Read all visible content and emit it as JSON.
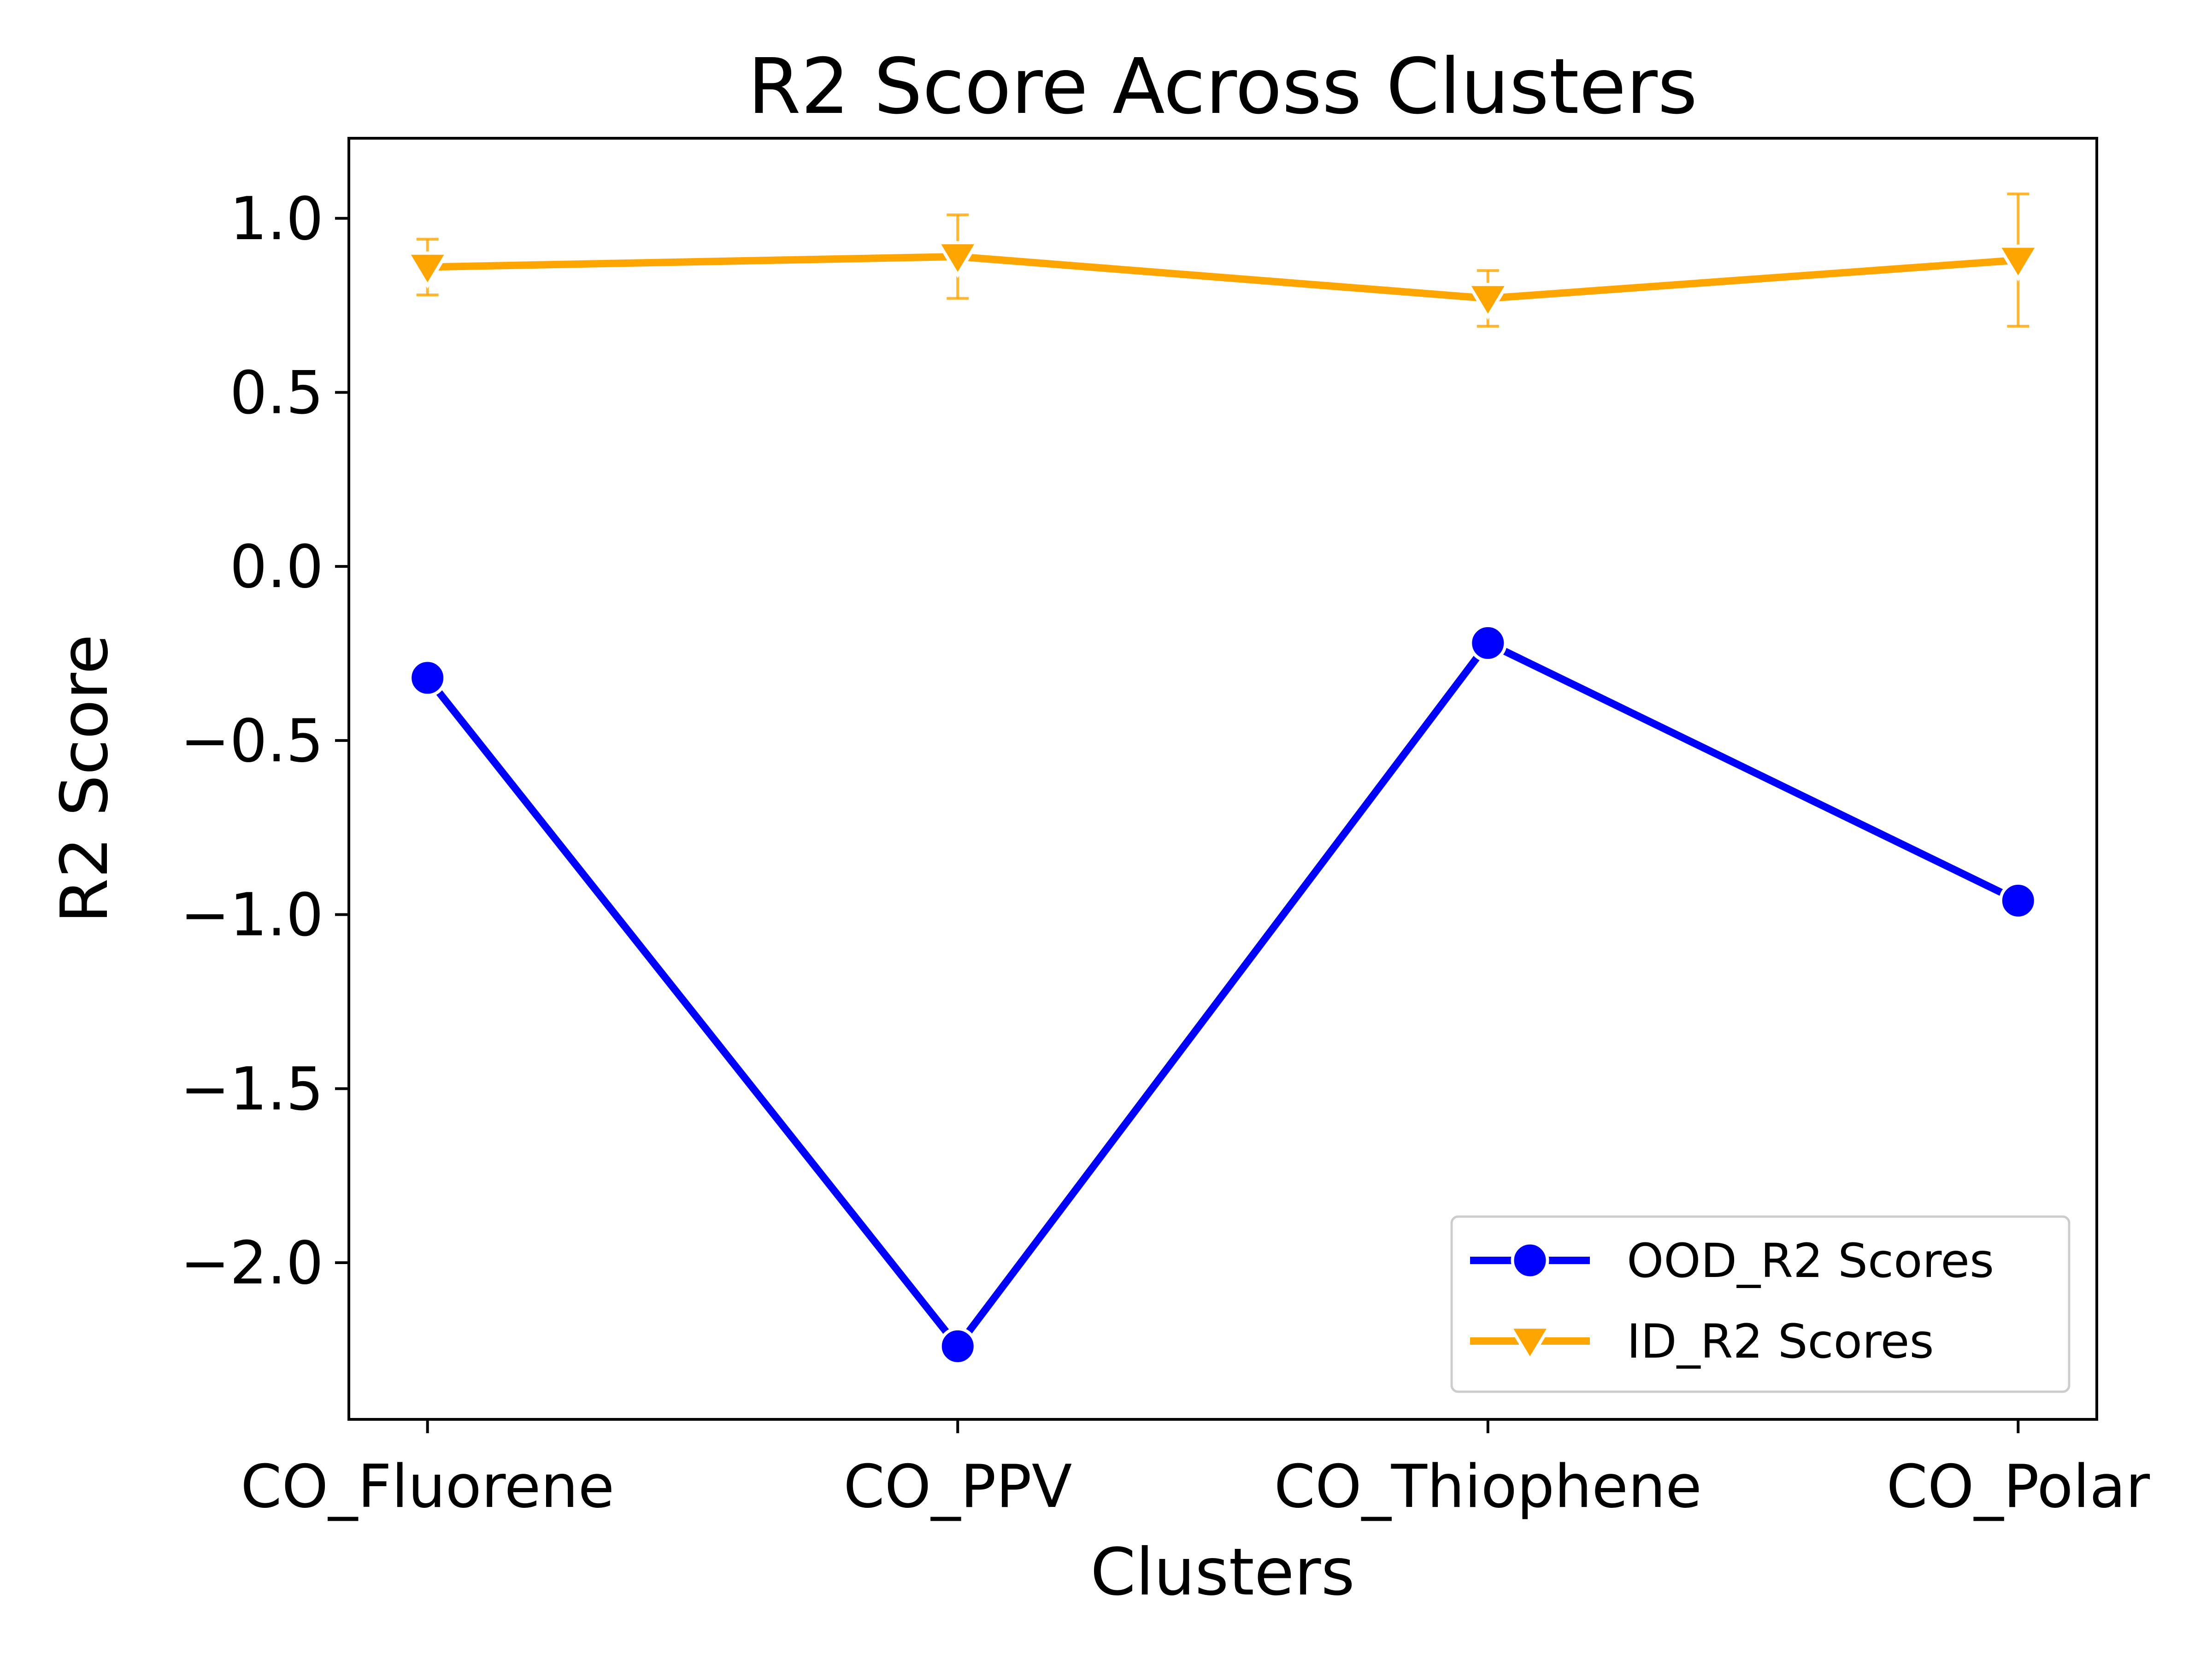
{
  "chart_data": {
    "type": "line",
    "title": "R2 Score Across Clusters",
    "xlabel": "Clusters",
    "ylabel": "R2 Score",
    "categories": [
      "CO_Fluorene",
      "CO_PPV",
      "CO_Thiophene",
      "CO_Polar"
    ],
    "ylim": [
      -2.45,
      1.23
    ],
    "yticks": [
      1.0,
      0.5,
      0.0,
      -0.5,
      -1.0,
      -1.5,
      -2.0
    ],
    "ytick_labels": [
      "1.0",
      "0.5",
      "0.0",
      "−0.5",
      "−1.0",
      "−1.5",
      "−2.0"
    ],
    "grid": false,
    "legend_position": "lower-right",
    "series": [
      {
        "name": "OOD_R2 Scores",
        "color": "#0000ff",
        "marker": "circle",
        "values": [
          -0.32,
          -2.24,
          -0.22,
          -0.96
        ],
        "errors": [
          0.0,
          0.04,
          0.0,
          0.0
        ]
      },
      {
        "name": "ID_R2 Scores",
        "color": "#ffa500",
        "marker": "triangle-down",
        "values": [
          0.86,
          0.89,
          0.77,
          0.88
        ],
        "errors": [
          0.08,
          0.12,
          0.08,
          0.19
        ]
      }
    ]
  }
}
